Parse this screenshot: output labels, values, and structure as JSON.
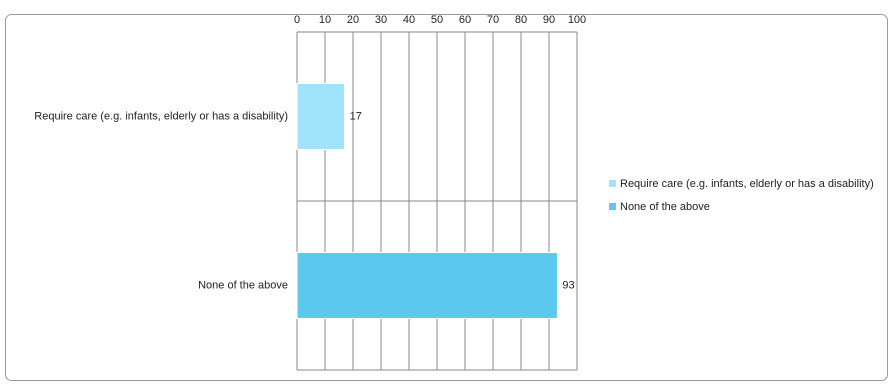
{
  "chart_data": {
    "type": "hbar",
    "categories": [
      "Require care (e.g. infants, elderly or has a disability)",
      "None of the above"
    ],
    "values": [
      17,
      93
    ],
    "colors": [
      "#9fe4fb",
      "#5bc9ef"
    ],
    "xlim": [
      0,
      100
    ],
    "xticks": [
      0,
      10,
      20,
      30,
      40,
      50,
      60,
      70,
      80,
      90,
      100
    ],
    "grid": true,
    "legend": "right"
  }
}
